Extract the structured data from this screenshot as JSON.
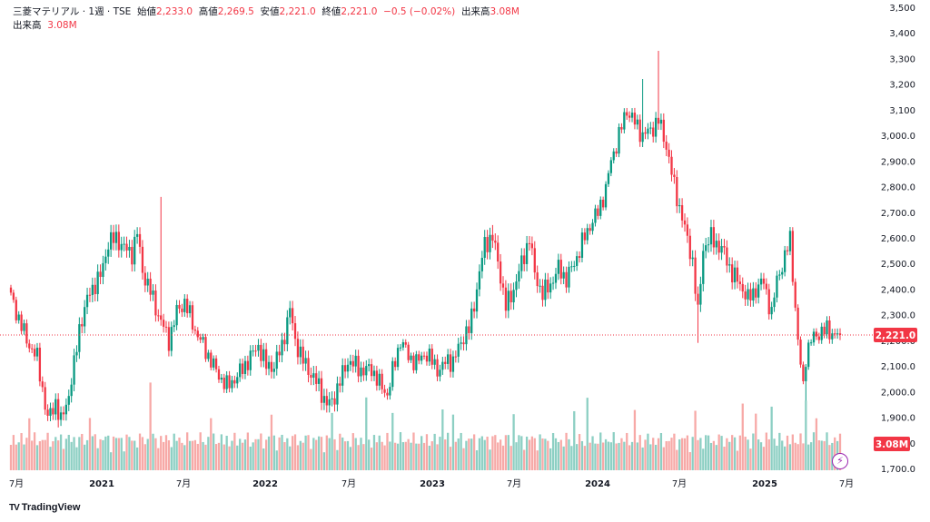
{
  "legend": {
    "symbol": "三菱マテリアル · 1週 · TSE",
    "open_label": "始値",
    "open": "2,233.0",
    "high_label": "高値",
    "high": "2,269.5",
    "low_label": "安値",
    "low": "2,221.0",
    "close_label": "終値",
    "close": "2,221.0",
    "change": "−0.5 (−0.02%)",
    "volume_label": "出来高",
    "volume": "3.08M",
    "volume_row_label": "出来高",
    "volume_row_value": "3.08M"
  },
  "brand": {
    "name": "TradingView",
    "logo": "TV"
  },
  "colors": {
    "up": "#089981",
    "down": "#f23645",
    "up_vol": "#8ccfc3",
    "down_vol": "#f7a9a7",
    "text": "#131722",
    "last_price": "#f23645"
  },
  "chart_data": {
    "type": "candlestick",
    "interval": "1週",
    "y_ticks": [
      "3,500",
      "3,400",
      "3,300",
      "3,200",
      "3,100",
      "3,000.0",
      "2,900.0",
      "2,800.0",
      "2,700.0",
      "2,600.0",
      "2,500.0",
      "2,400.0",
      "2,300.0",
      "2,200.0",
      "2,100.0",
      "2,000.0",
      "1,900.0",
      "1,800.0",
      "1,700.0"
    ],
    "ylim": [
      1650,
      3530
    ],
    "x_ticks": [
      "7月",
      "2021",
      "7月",
      "2022",
      "7月",
      "2023",
      "7月",
      "2024",
      "7月",
      "2025",
      "7月"
    ],
    "last_price_label": "2,221.0",
    "last_price": 2221.0,
    "volume_label": "3.08M",
    "anchors": [
      [
        0,
        2370
      ],
      [
        6,
        2200
      ],
      [
        10,
        2130
      ],
      [
        14,
        1890
      ],
      [
        17,
        1960
      ],
      [
        19,
        1880
      ],
      [
        22,
        1990
      ],
      [
        24,
        2100
      ],
      [
        26,
        2250
      ],
      [
        30,
        2390
      ],
      [
        34,
        2450
      ],
      [
        37,
        2580
      ],
      [
        40,
        2600
      ],
      [
        43,
        2560
      ],
      [
        46,
        2540
      ],
      [
        48,
        2620
      ],
      [
        50,
        2470
      ],
      [
        53,
        2390
      ],
      [
        56,
        2300
      ],
      [
        60,
        2200
      ],
      [
        63,
        2310
      ],
      [
        66,
        2350
      ],
      [
        70,
        2240
      ],
      [
        74,
        2160
      ],
      [
        78,
        2080
      ],
      [
        82,
        2020
      ],
      [
        86,
        2060
      ],
      [
        90,
        2120
      ],
      [
        94,
        2180
      ],
      [
        97,
        2100
      ],
      [
        100,
        2100
      ],
      [
        103,
        2180
      ],
      [
        106,
        2320
      ],
      [
        108,
        2200
      ],
      [
        111,
        2120
      ],
      [
        114,
        2070
      ],
      [
        117,
        2020
      ],
      [
        120,
        1950
      ],
      [
        122,
        1960
      ],
      [
        125,
        2040
      ],
      [
        128,
        2120
      ],
      [
        131,
        2100
      ],
      [
        134,
        2080
      ],
      [
        137,
        2090
      ],
      [
        140,
        2030
      ],
      [
        143,
        1990
      ],
      [
        146,
        2120
      ],
      [
        148,
        2200
      ],
      [
        151,
        2140
      ],
      [
        154,
        2110
      ],
      [
        157,
        2150
      ],
      [
        160,
        2120
      ],
      [
        163,
        2080
      ],
      [
        166,
        2130
      ],
      [
        168,
        2110
      ],
      [
        171,
        2200
      ],
      [
        174,
        2240
      ],
      [
        177,
        2400
      ],
      [
        180,
        2580
      ],
      [
        183,
        2600
      ],
      [
        185,
        2510
      ],
      [
        188,
        2330
      ],
      [
        191,
        2400
      ],
      [
        194,
        2500
      ],
      [
        197,
        2600
      ],
      [
        199,
        2460
      ],
      [
        202,
        2380
      ],
      [
        205,
        2420
      ],
      [
        208,
        2480
      ],
      [
        211,
        2440
      ],
      [
        214,
        2500
      ],
      [
        217,
        2580
      ],
      [
        220,
        2650
      ],
      [
        223,
        2700
      ],
      [
        226,
        2790
      ],
      [
        228,
        2900
      ],
      [
        231,
        3000
      ],
      [
        234,
        3100
      ],
      [
        237,
        3050
      ],
      [
        240,
        3000
      ],
      [
        243,
        3020
      ],
      [
        246,
        3060
      ],
      [
        249,
        2960
      ],
      [
        252,
        2800
      ],
      [
        255,
        2680
      ],
      [
        257,
        2590
      ],
      [
        259,
        2510
      ],
      [
        261,
        2300
      ],
      [
        263,
        2560
      ],
      [
        266,
        2600
      ],
      [
        268,
        2580
      ],
      [
        271,
        2540
      ],
      [
        274,
        2460
      ],
      [
        277,
        2420
      ],
      [
        280,
        2360
      ],
      [
        283,
        2400
      ],
      [
        286,
        2430
      ],
      [
        289,
        2300
      ],
      [
        291,
        2440
      ],
      [
        294,
        2520
      ],
      [
        296,
        2600
      ],
      [
        299,
        2190
      ],
      [
        301,
        2020
      ],
      [
        302,
        2140
      ],
      [
        304,
        2200
      ],
      [
        307,
        2230
      ],
      [
        310,
        2240
      ],
      [
        313,
        2225
      ],
      [
        315,
        2221
      ]
    ],
    "spikes_high": [
      [
        246,
        3330
      ],
      [
        240,
        3220
      ],
      [
        183,
        2650
      ],
      [
        57,
        2760
      ]
    ],
    "spikes_low": [
      [
        261,
        2190
      ],
      [
        302,
        1950
      ],
      [
        299,
        2180
      ],
      [
        18,
        1860
      ]
    ]
  }
}
